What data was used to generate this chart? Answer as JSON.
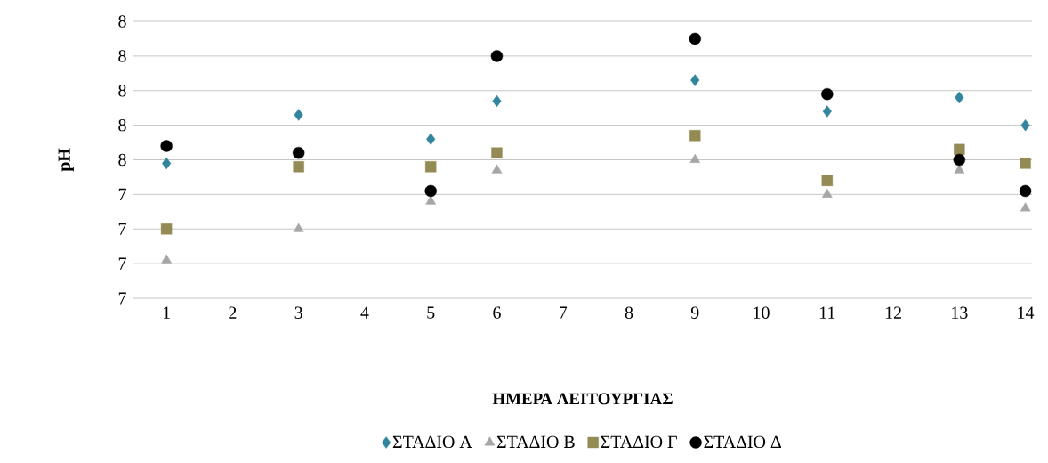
{
  "chart_data": {
    "type": "scatter",
    "xlabel": "ΗΜΕΡΑ ΛΕΙΤΟΥΡΓΙΑΣ",
    "ylabel": "pH",
    "xlim": [
      0.5,
      14.1
    ],
    "xticks": [
      1,
      2,
      3,
      4,
      5,
      6,
      7,
      8,
      9,
      10,
      11,
      12,
      13,
      14
    ],
    "ylim": [
      7.1,
      7.9
    ],
    "yticks": [
      {
        "value": 7.1,
        "label": "7"
      },
      {
        "value": 7.2,
        "label": "7"
      },
      {
        "value": 7.3,
        "label": "7"
      },
      {
        "value": 7.4,
        "label": "7"
      },
      {
        "value": 7.5,
        "label": "8"
      },
      {
        "value": 7.6,
        "label": "8"
      },
      {
        "value": 7.7,
        "label": "8"
      },
      {
        "value": 7.8,
        "label": "8"
      },
      {
        "value": 7.9,
        "label": "8"
      }
    ],
    "grid": "y",
    "legend": "bottom",
    "x": [
      1,
      3,
      5,
      6,
      9,
      11,
      13,
      14
    ],
    "series": [
      {
        "name": "ΣΤΑΔΙΟ Α",
        "color": "#31859c",
        "marker": "diamond",
        "values": [
          7.49,
          7.63,
          7.56,
          7.67,
          7.73,
          7.64,
          7.68,
          7.6
        ]
      },
      {
        "name": "ΣΤΑΔΙΟ Β",
        "color": "#a6a6a6",
        "marker": "triangle",
        "values": [
          7.21,
          7.3,
          7.38,
          7.47,
          7.5,
          7.4,
          7.47,
          7.36
        ]
      },
      {
        "name": "ΣΤΑΔΙΟ Γ",
        "color": "#948a54",
        "marker": "square",
        "values": [
          7.3,
          7.48,
          7.48,
          7.52,
          7.57,
          7.44,
          7.53,
          7.49
        ]
      },
      {
        "name": "ΣΤΑΔΙΟ Δ",
        "color": "#000000",
        "marker": "circle",
        "values": [
          7.54,
          7.52,
          7.41,
          7.8,
          7.85,
          7.69,
          7.5,
          7.41
        ]
      }
    ]
  }
}
